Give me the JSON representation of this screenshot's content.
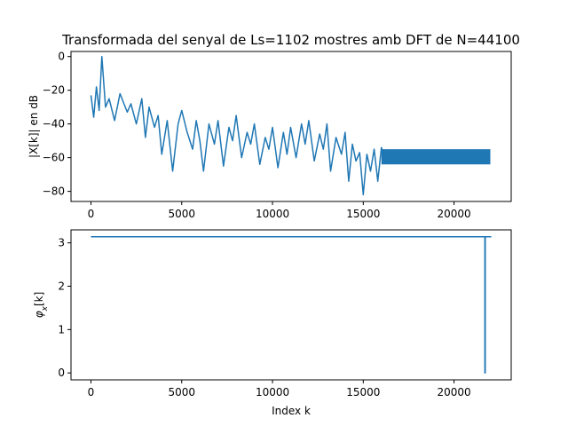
{
  "chart_data": [
    {
      "type": "line",
      "title": "Transformada del senyal de Ls=1102 mostres amb DFT de N=44100",
      "xlabel": "",
      "ylabel": "|X[k]| en dB",
      "xlim": [
        -1100,
        23150
      ],
      "ylim": [
        -86,
        3
      ],
      "xticks": [
        0,
        5000,
        10000,
        15000,
        20000
      ],
      "xtick_labels": [
        "0",
        "5000",
        "10000",
        "15000",
        "20000"
      ],
      "yticks": [
        0,
        -20,
        -40,
        -60,
        -80
      ],
      "ytick_labels": [
        "0",
        "−20",
        "−40",
        "−60",
        "−80"
      ],
      "grid": false,
      "color": "#1f77b4",
      "series": [
        {
          "x": [
            0,
            150,
            300,
            450,
            600,
            800,
            1000,
            1300,
            1600,
            2000,
            2200,
            2500,
            2800,
            3000,
            3200,
            3500,
            3700,
            3900,
            4200,
            4500,
            4800,
            5000,
            5300,
            5600,
            5800,
            6000,
            6200,
            6500,
            6800,
            7000,
            7300,
            7600,
            7800,
            8000,
            8300,
            8600,
            8800,
            9000,
            9300,
            9600,
            9800,
            10000,
            10300,
            10600,
            10800,
            11000,
            11300,
            11600,
            11800,
            12000,
            12300,
            12600,
            12800,
            13000,
            13200,
            13500,
            13800,
            14000,
            14200,
            14400,
            14600,
            14800,
            15000,
            15200,
            15400,
            15600,
            15800,
            16000,
            16200,
            17000,
            18000,
            19000,
            20000,
            21000,
            22000
          ],
          "y": [
            -23,
            -36,
            -18,
            -32,
            0,
            -30,
            -25,
            -38,
            -22,
            -33,
            -28,
            -40,
            -25,
            -48,
            -30,
            -42,
            -35,
            -58,
            -38,
            -68,
            -40,
            -32,
            -45,
            -55,
            -38,
            -50,
            -68,
            -40,
            -52,
            -38,
            -65,
            -42,
            -50,
            -35,
            -60,
            -45,
            -52,
            -40,
            -64,
            -48,
            -55,
            -42,
            -66,
            -45,
            -58,
            -42,
            -60,
            -40,
            -52,
            -38,
            -62,
            -46,
            -55,
            -40,
            -68,
            -48,
            -58,
            -45,
            -74,
            -52,
            -62,
            -57,
            -82,
            -58,
            -68,
            -55,
            -74,
            -54,
            -62,
            -60,
            -60,
            -60,
            -60,
            -60,
            -60
          ],
          "band": {
            "x_start": 16000,
            "x_end": 22000,
            "y_low": -64,
            "y_high": -55
          }
        }
      ]
    },
    {
      "type": "line",
      "title": "",
      "xlabel": "Index k",
      "ylabel": "φ",
      "ylabel_sub": "x",
      "ylabel_arg": "[k]",
      "xlim": [
        -1100,
        23150
      ],
      "ylim": [
        -0.16,
        3.3
      ],
      "xticks": [
        0,
        5000,
        10000,
        15000,
        20000
      ],
      "xtick_labels": [
        "0",
        "5000",
        "10000",
        "15000",
        "20000"
      ],
      "yticks": [
        0,
        1,
        2,
        3
      ],
      "ytick_labels": [
        "0",
        "1",
        "2",
        "3"
      ],
      "grid": false,
      "color": "#1f77b4",
      "series": [
        {
          "x": [
            0,
            21700,
            21700,
            21720,
            21720,
            22050
          ],
          "y": [
            3.1416,
            3.1416,
            0,
            0,
            3.1416,
            3.1416
          ]
        }
      ]
    }
  ]
}
